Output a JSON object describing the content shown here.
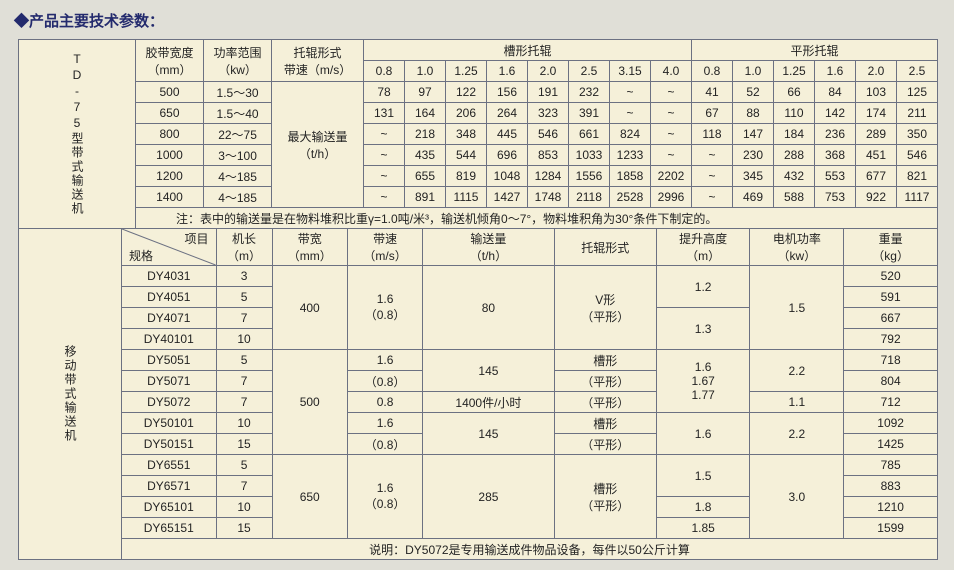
{
  "title": "◆产品主要技术参数：",
  "table1": {
    "sideLabel": "TD-75型带式输送机",
    "headers": {
      "width": "胶带宽度",
      "widthUnit": "（mm）",
      "power": "功率范围",
      "powerUnit": "（kw）",
      "roller": "托辊形式",
      "speed": "带速（m/s）",
      "trough": "槽形托辊",
      "flat": "平形托辊",
      "maxCap": "最大输送量",
      "maxCapUnit": "（t/h）"
    },
    "speeds_trough": [
      "0.8",
      "1.0",
      "1.25",
      "1.6",
      "2.0",
      "2.5",
      "3.15",
      "4.0"
    ],
    "speeds_flat": [
      "0.8",
      "1.0",
      "1.25",
      "1.6",
      "2.0",
      "2.5"
    ],
    "rows": [
      {
        "w": "500",
        "p": "1.5～30",
        "t": [
          "78",
          "97",
          "122",
          "156",
          "191",
          "232",
          "~",
          "~"
        ],
        "f": [
          "41",
          "52",
          "66",
          "84",
          "103",
          "125"
        ]
      },
      {
        "w": "650",
        "p": "1.5～40",
        "t": [
          "131",
          "164",
          "206",
          "264",
          "323",
          "391",
          "~",
          "~"
        ],
        "f": [
          "67",
          "88",
          "110",
          "142",
          "174",
          "211"
        ]
      },
      {
        "w": "800",
        "p": "22～75",
        "t": [
          "~",
          "218",
          "348",
          "445",
          "546",
          "661",
          "824",
          "~"
        ],
        "f": [
          "118",
          "147",
          "184",
          "236",
          "289",
          "350"
        ]
      },
      {
        "w": "1000",
        "p": "3～100",
        "t": [
          "~",
          "435",
          "544",
          "696",
          "853",
          "1033",
          "1233",
          "~"
        ],
        "f": [
          "~",
          "230",
          "288",
          "368",
          "451",
          "546"
        ]
      },
      {
        "w": "1200",
        "p": "4～185",
        "t": [
          "~",
          "655",
          "819",
          "1048",
          "1284",
          "1556",
          "1858",
          "2202"
        ],
        "f": [
          "~",
          "345",
          "432",
          "553",
          "677",
          "821"
        ]
      },
      {
        "w": "1400",
        "p": "4～185",
        "t": [
          "~",
          "891",
          "1115",
          "1427",
          "1748",
          "2118",
          "2528",
          "2996"
        ],
        "f": [
          "~",
          "469",
          "588",
          "753",
          "922",
          "1117"
        ]
      }
    ],
    "note": "注：表中的输送量是在物料堆积比重γ=1.0吨/米³，输送机倾角0～7°，物料堆积角为30°条件下制定的。"
  },
  "table2": {
    "sideLabel": "移动带式输送机",
    "headers": {
      "spec": "规格",
      "item": "项目",
      "len": "机长",
      "lenU": "（m）",
      "bw": "带宽",
      "bwU": "（mm）",
      "spd": "带速",
      "spdU": "（m/s）",
      "cap": "输送量",
      "capU": "（t/h）",
      "roller": "托辊形式",
      "lift": "提升高度",
      "liftU": "（m）",
      "motor": "电机功率",
      "motorU": "（kw）",
      "wt": "重量",
      "wtU": "（kg）"
    },
    "rows": [
      {
        "spec": "DY4031",
        "len": "3",
        "wt": "520"
      },
      {
        "spec": "DY4051",
        "len": "5",
        "wt": "591"
      },
      {
        "spec": "DY4071",
        "len": "7",
        "wt": "667"
      },
      {
        "spec": "DY40101",
        "len": "10",
        "wt": "792"
      },
      {
        "spec": "DY5051",
        "len": "5",
        "wt": "718"
      },
      {
        "spec": "DY5071",
        "len": "7",
        "wt": "804"
      },
      {
        "spec": "DY5072",
        "len": "7",
        "wt": "712"
      },
      {
        "spec": "DY50101",
        "len": "10",
        "wt": "1092"
      },
      {
        "spec": "DY50151",
        "len": "15",
        "wt": "1425"
      },
      {
        "spec": "DY6551",
        "len": "5",
        "wt": "785"
      },
      {
        "spec": "DY6571",
        "len": "7",
        "wt": "883"
      },
      {
        "spec": "DY65101",
        "len": "10",
        "wt": "1210"
      },
      {
        "spec": "DY65151",
        "len": "15",
        "wt": "1599"
      }
    ],
    "block1": {
      "bw": "400",
      "spd1": "1.6",
      "spd2": "（0.8）",
      "cap": "80",
      "roller1": "V形",
      "roller2": "（平形）",
      "lift1": "1.2",
      "lift2": "1.3",
      "motor": "1.5"
    },
    "block2": {
      "bw": "500",
      "spdA": "1.6",
      "spdB": "（0.8）",
      "spdC": "0.8",
      "spdD": "1.6",
      "spdE": "（0.8）",
      "capA": "145",
      "capB": "1400件/小时",
      "capC": "145",
      "rollerA": "槽形",
      "rollerB": "（平形）",
      "rollerC": "（平形）",
      "rollerD": "槽形",
      "rollerE": "（平形）",
      "liftA": "1.6",
      "liftB": "1.67",
      "liftC": "1.77",
      "liftD": "1.6",
      "motorA": "2.2",
      "motorB": "1.1",
      "motorC": "2.2"
    },
    "block3": {
      "bw": "650",
      "spd1": "1.6",
      "spd2": "（0.8）",
      "cap": "285",
      "roller1": "槽形",
      "roller2": "（平形）",
      "lift1": "1.5",
      "lift2": "1.8",
      "lift3": "1.85",
      "motor": "3.0"
    },
    "note": "说明：DY5072是专用输送成件物品设备，每件以50公斤计算"
  }
}
